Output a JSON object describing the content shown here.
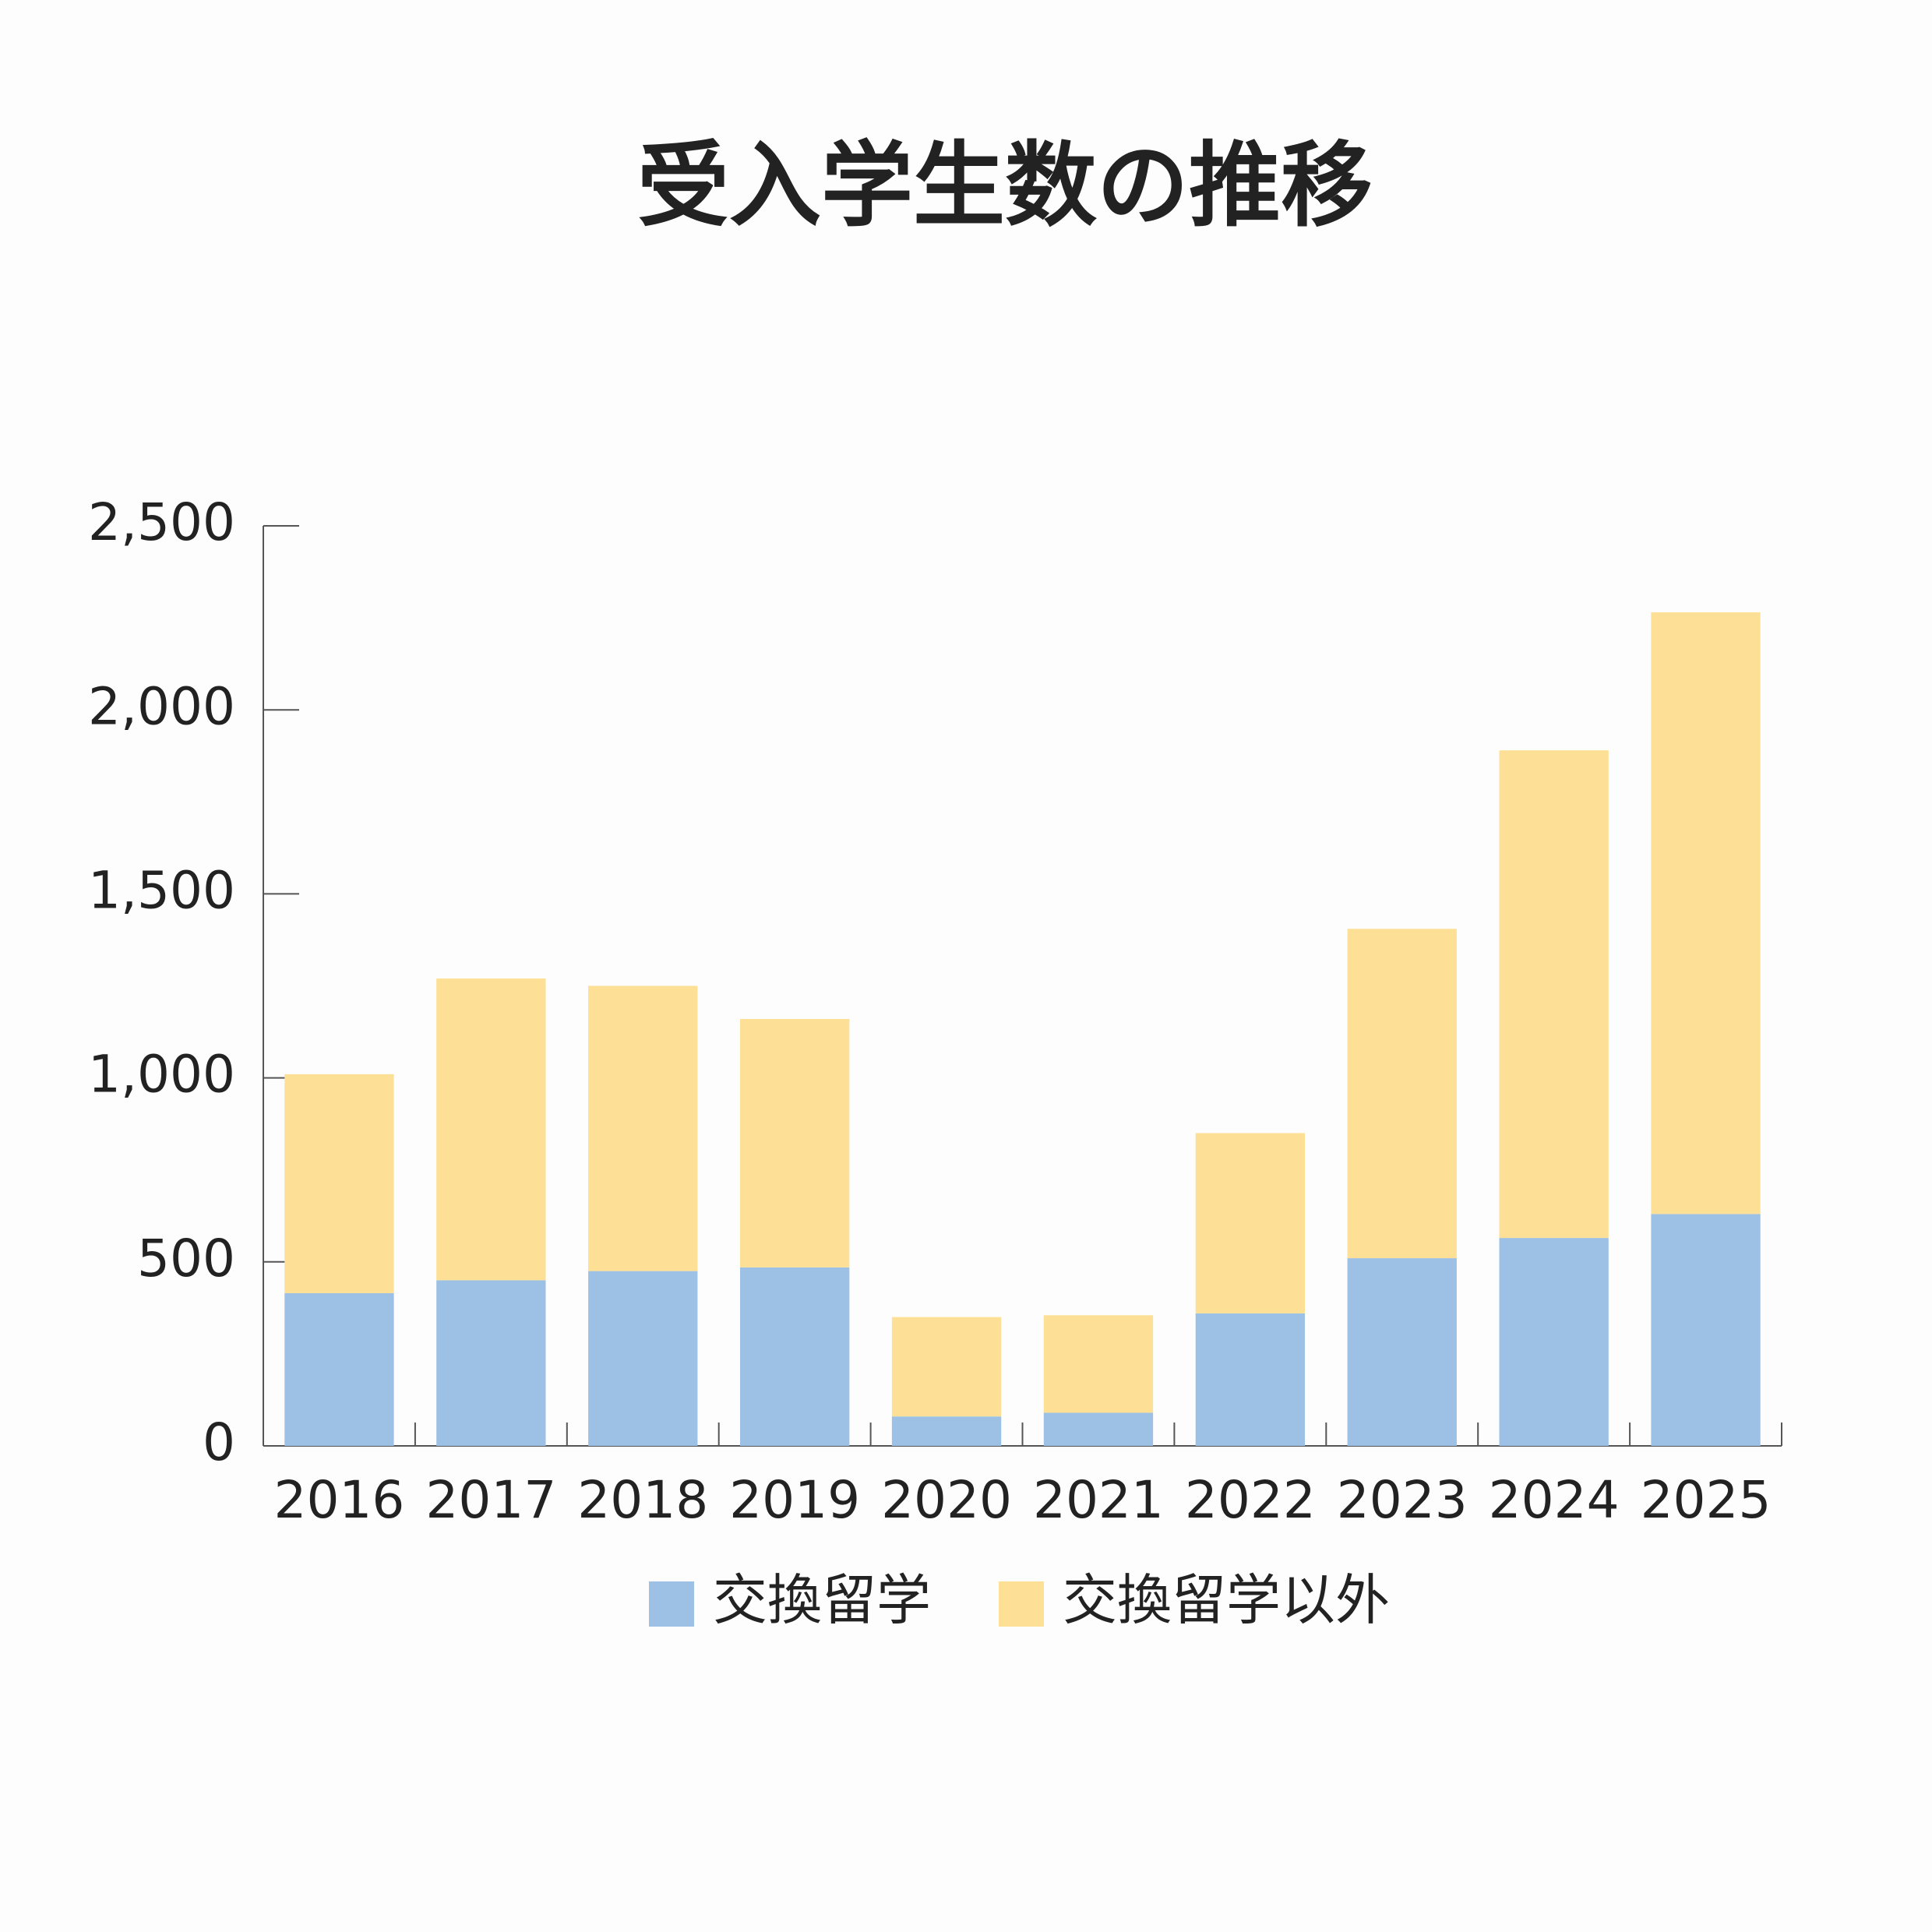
{
  "chart_data": {
    "type": "stacked_bar",
    "title": "受入学生数の推移",
    "categories": [
      "2016",
      "2017",
      "2018",
      "2019",
      "2020",
      "2021",
      "2022",
      "2023",
      "2024",
      "2025"
    ],
    "series": [
      {
        "name": "交換留学",
        "color": "#9dc0e5",
        "values": [
          415,
          450,
          475,
          485,
          80,
          90,
          360,
          510,
          565,
          630
        ]
      },
      {
        "name": "交換留学以外",
        "color": "#fde095",
        "values": [
          595,
          820,
          775,
          675,
          270,
          265,
          490,
          895,
          1325,
          1635
        ]
      }
    ],
    "ylim": [
      0,
      2500
    ],
    "yticks": [
      0,
      500,
      {
        "value": 1000,
        "label": "1,000"
      },
      {
        "value": 1500,
        "label": "1,500"
      },
      {
        "value": 2000,
        "label": "2,000"
      },
      {
        "value": 2500,
        "label": "2,500"
      }
    ],
    "legend": "bottom"
  }
}
